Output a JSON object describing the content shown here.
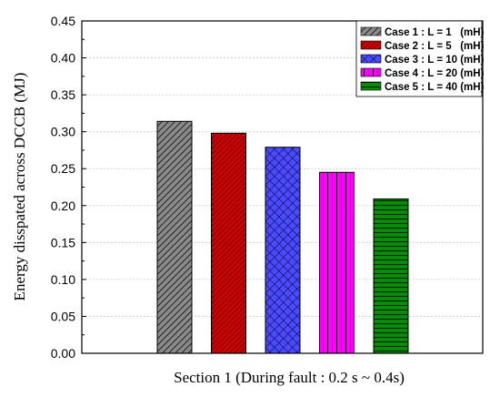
{
  "chart_data": {
    "type": "bar",
    "title": "",
    "xlabel": "Section 1 (During fault : 0.2 s ~ 0.4s)",
    "ylabel": "Energy disspated across DCCB (MJ)",
    "ylim": [
      0,
      0.45
    ],
    "yticks": [
      "0.00",
      "0.05",
      "0.10",
      "0.15",
      "0.20",
      "0.25",
      "0.30",
      "0.35",
      "0.40",
      "0.45"
    ],
    "grid": "horizontal",
    "legend_position": "top-right",
    "series": [
      {
        "name": "Case 1 : L = 1   (mH)",
        "value": 0.314,
        "color": "#555555",
        "pattern": "diagonal-lines-light"
      },
      {
        "name": "Case 2 : L = 5   (mH)",
        "value": 0.298,
        "color": "#c00000",
        "pattern": "diagonal-lines-dense"
      },
      {
        "name": "Case 3 : L = 10 (mH)",
        "value": 0.279,
        "color": "#3f3fff",
        "pattern": "crosshatch"
      },
      {
        "name": "Case 4 : L = 20 (mH)",
        "value": 0.245,
        "color": "#ff00ff",
        "pattern": "vertical-lines"
      },
      {
        "name": "Case 5 : L = 40 (mH)",
        "value": 0.209,
        "color": "#0a7a0a",
        "pattern": "horizontal-lines"
      }
    ]
  }
}
